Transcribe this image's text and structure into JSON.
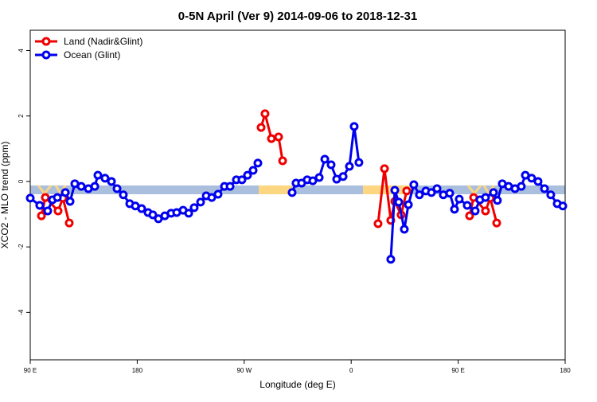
{
  "chart_data": {
    "type": "line",
    "title": "0-5N April (Ver 9)   2014-09-06 to 2018-12-31",
    "x_label": "Longitude (deg E)",
    "y_label": "XCO2 - MLO trend (ppm)",
    "xlim": [
      90,
      540
    ],
    "xticks": [
      {
        "value": 90,
        "label": "90 E"
      },
      {
        "value": 180,
        "label": "180"
      },
      {
        "value": 270,
        "label": "90 W"
      },
      {
        "value": 360,
        "label": "0"
      },
      {
        "value": 450,
        "label": "90 E"
      },
      {
        "value": 540,
        "label": "180"
      }
    ],
    "ylim": [
      -5.45,
      4.62
    ],
    "yticks": [
      -4,
      -2,
      0,
      2,
      4
    ],
    "legend": "top-left",
    "series": [
      {
        "name": "Land (Nadir&Glint)",
        "color": "#ee0000",
        "x": [
          99.4,
          102.7,
          113.4,
          117.5,
          122.8,
          null,
          284.2,
          287.5,
          292.9,
          298.9,
          302.3,
          null,
          382.6,
          388.0,
          393.3,
          396.7,
          402.0,
          406.7,
          null,
          459.6,
          463.0,
          473.0,
          477.0,
          482.4
        ],
        "values": [
          -1.05,
          -0.49,
          -0.9,
          -0.51,
          -1.27,
          null,
          1.65,
          2.07,
          1.31,
          1.36,
          0.63,
          null,
          -1.29,
          0.39,
          -1.19,
          -0.61,
          -1.02,
          -0.29,
          null,
          -1.05,
          -0.49,
          -0.9,
          -0.51,
          -1.27
        ]
      },
      {
        "name": "Ocean (Glint)",
        "color": "#0000ee",
        "x": [
          90,
          98.0,
          104.7,
          108.7,
          112.8,
          119.5,
          123.5,
          127.5,
          132.9,
          138.9,
          144.3,
          146.9,
          152.9,
          158.3,
          163.0,
          168.3,
          173.7,
          178.4,
          183.7,
          189.1,
          193.1,
          197.8,
          203.2,
          208.5,
          213.2,
          218.6,
          223.3,
          227.9,
          233.3,
          238.0,
          242.7,
          248.0,
          253.4,
          258.1,
          263.4,
          268.1,
          272.8,
          277.5,
          281.5,
          null,
          310.3,
          313.6,
          318.3,
          323.0,
          327.7,
          333.1,
          337.8,
          343.1,
          347.8,
          353.2,
          358.5,
          362.5,
          366.5,
          null,
          393.3,
          396.7,
          400.0,
          404.7,
          408.1,
          412.7,
          417.4,
          422.8,
          427.5,
          432.2,
          437.5,
          442.9,
          446.9,
          450.9,
          457.6,
          464.3,
          468.3,
          473.0,
          479.7,
          483.0,
          487.1,
          492.4,
          497.8,
          503.1,
          506.5,
          511.8,
          517.2,
          522.6,
          527.9,
          533.3,
          538.0
        ],
        "values": [
          -0.51,
          -0.73,
          -0.9,
          -0.56,
          -0.49,
          -0.34,
          -0.61,
          -0.07,
          -0.15,
          -0.22,
          -0.15,
          0.19,
          0.1,
          0,
          -0.22,
          -0.41,
          -0.68,
          -0.75,
          -0.83,
          -0.95,
          -1.02,
          -1.14,
          -1.05,
          -0.97,
          -0.95,
          -0.88,
          -0.97,
          -0.8,
          -0.63,
          -0.44,
          -0.49,
          -0.39,
          -0.15,
          -0.15,
          0.05,
          0.05,
          0.19,
          0.34,
          0.56,
          null,
          -0.34,
          -0.05,
          -0.05,
          0.05,
          0.02,
          0.12,
          0.68,
          0.51,
          0.07,
          0.15,
          0.46,
          1.68,
          0.58,
          null,
          -2.38,
          -0.27,
          -0.63,
          -1.46,
          -0.71,
          -0.1,
          -0.41,
          -0.29,
          -0.34,
          -0.22,
          -0.41,
          -0.36,
          -0.85,
          -0.54,
          -0.73,
          -0.9,
          -0.56,
          -0.49,
          -0.34,
          -0.58,
          -0.07,
          -0.15,
          -0.22,
          -0.15,
          0.19,
          0.1,
          0,
          -0.22,
          -0.41,
          -0.68,
          -0.75
        ]
      }
    ]
  }
}
